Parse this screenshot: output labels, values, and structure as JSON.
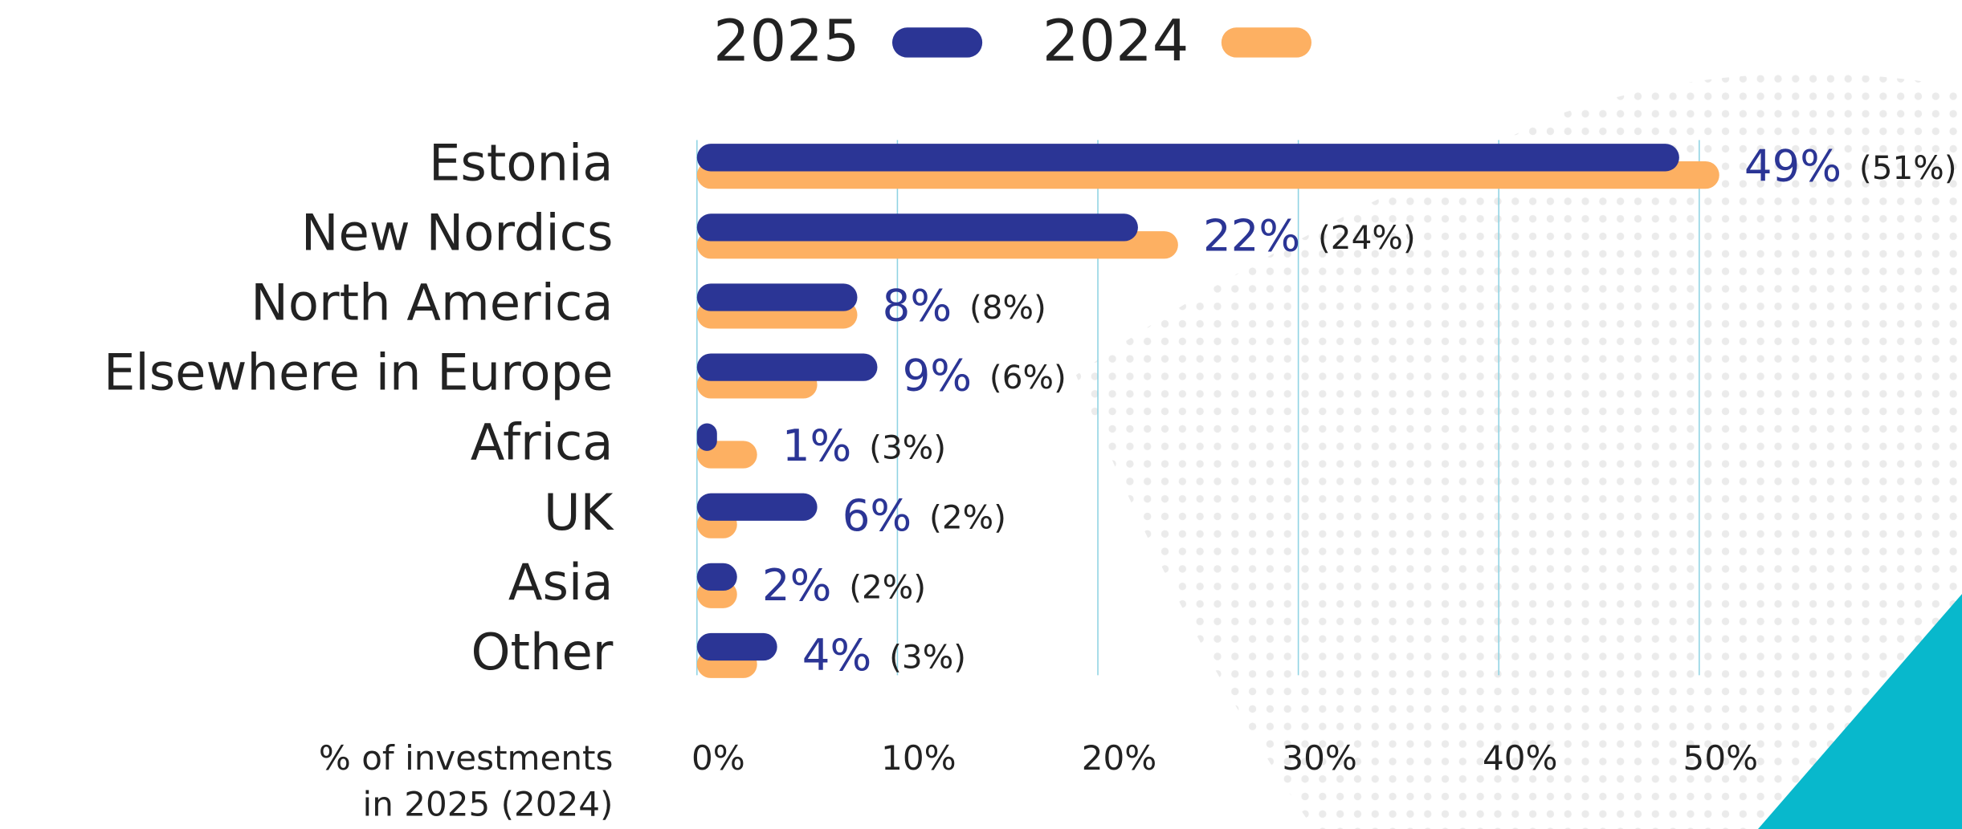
{
  "chart_data": {
    "type": "bar",
    "orientation": "horizontal",
    "categories": [
      "Estonia",
      "New Nordics",
      "North America",
      "Elsewhere in Europe",
      "Africa",
      "UK",
      "Asia",
      "Other"
    ],
    "series": [
      {
        "name": "2025",
        "color": "#2b3595",
        "values": [
          49,
          22,
          8,
          9,
          1,
          6,
          2,
          4
        ],
        "value_labels": [
          "49%",
          "22%",
          "8%",
          "9%",
          "1%",
          "6%",
          "2%",
          "4%"
        ]
      },
      {
        "name": "2024",
        "color": "#fdb062",
        "values": [
          51,
          24,
          8,
          6,
          3,
          2,
          2,
          3
        ],
        "value_labels": [
          "(51%)",
          "(24%)",
          "(8%)",
          "(6%)",
          "(3%)",
          "(2%)",
          "(2%)",
          "(3%)"
        ]
      }
    ],
    "xlim": [
      0,
      55
    ],
    "xticks": [
      {
        "value": 0,
        "label": "0%"
      },
      {
        "value": 10,
        "label": "10%"
      },
      {
        "value": 20,
        "label": "20%"
      },
      {
        "value": 30,
        "label": "30%"
      },
      {
        "value": 40,
        "label": "40%"
      },
      {
        "value": 50,
        "label": "50%"
      }
    ],
    "x_label": [
      "% of investments",
      "in 2025 (2024)"
    ],
    "grid": true,
    "grid_color": "#8fd3e3",
    "legend": "top"
  }
}
